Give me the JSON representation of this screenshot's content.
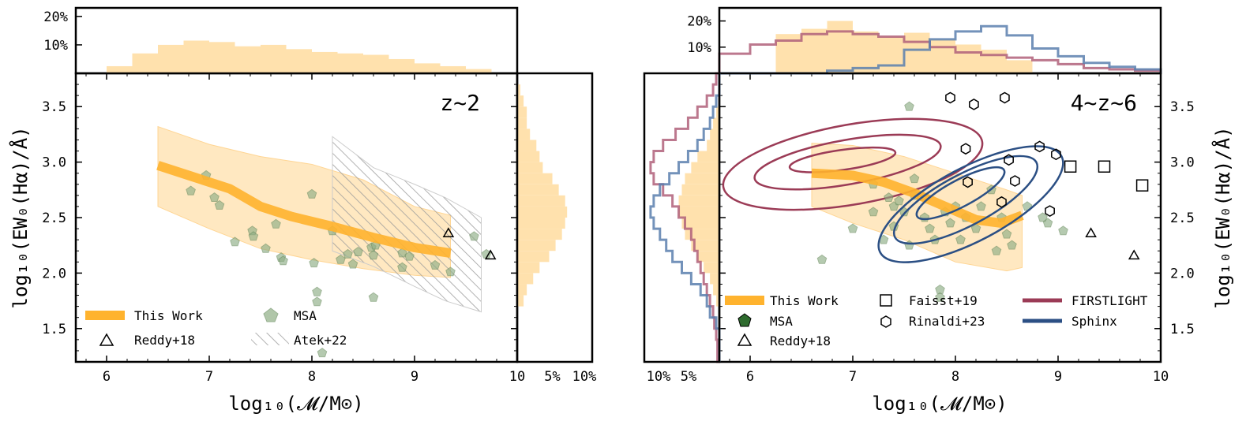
{
  "colors": {
    "this_work": "#ffb32e",
    "this_work_band": "#ffe1ad",
    "hist": "#ffe1ad",
    "msa": "#8fae86",
    "msa_stroke": "#6c8f62",
    "msa_legend": "#2e6b2e",
    "firstlight": "#9b3b56",
    "sphinx": "#2b4f84",
    "sphinx_hist": "#5b7fae",
    "firstlight_hist": "#b0607a",
    "atek_hatch": "#999999"
  },
  "icons": [
    "triangle-marker",
    "hexagon-marker",
    "square-marker",
    "pentagon-marker",
    "hatch-swatch"
  ],
  "chart_data": [
    {
      "type": "scatter",
      "panel": "left",
      "title": "z~2",
      "xlabel": "log10(M/M⊙)",
      "ylabel": "log10(EW0(Hα)/Å)",
      "xlim": [
        5.7,
        10.0
      ],
      "ylim": [
        1.2,
        3.8
      ],
      "x_ticks": [
        "6",
        "7",
        "8",
        "9",
        "10"
      ],
      "y_ticks": [
        "1.5",
        "2.0",
        "2.5",
        "3.0",
        "3.5"
      ],
      "legend": {
        "placement": "lower-left",
        "entries": [
          "This Work",
          "MSA",
          "Reddy+18",
          "Atek+22"
        ]
      },
      "this_work_median": {
        "x": [
          6.5,
          6.8,
          7.2,
          7.5,
          7.8,
          8.2,
          8.6,
          9.0,
          9.35
        ],
        "y": [
          2.97,
          2.88,
          2.76,
          2.6,
          2.51,
          2.42,
          2.32,
          2.23,
          2.18
        ]
      },
      "this_work_band": {
        "x": [
          6.5,
          7.0,
          7.5,
          8.0,
          8.5,
          9.0,
          9.35
        ],
        "y_low": [
          2.6,
          2.4,
          2.22,
          2.12,
          2.04,
          1.98,
          1.96
        ],
        "y_high": [
          3.32,
          3.16,
          3.05,
          2.98,
          2.84,
          2.6,
          2.52
        ]
      },
      "atek_region": {
        "x": [
          8.2,
          8.6,
          9.0,
          9.3,
          9.65,
          9.65,
          9.3,
          9.0,
          8.6,
          8.2
        ],
        "y": [
          3.23,
          2.95,
          2.8,
          2.68,
          2.5,
          1.65,
          1.75,
          1.88,
          2.06,
          2.2
        ]
      },
      "msa": {
        "x": [
          6.82,
          6.97,
          7.05,
          7.1,
          7.25,
          7.42,
          7.43,
          7.55,
          7.65,
          7.7,
          7.72,
          8.0,
          8.02,
          8.05,
          8.2,
          8.28,
          8.35,
          8.4,
          8.45,
          8.58,
          8.6,
          8.62,
          8.88,
          8.88,
          8.95,
          9.2,
          9.35,
          9.58,
          9.7,
          8.1,
          8.6,
          8.05
        ],
        "y": [
          2.74,
          2.88,
          2.68,
          2.61,
          2.28,
          2.38,
          2.33,
          2.22,
          2.44,
          2.14,
          2.11,
          2.71,
          2.09,
          1.83,
          2.38,
          2.12,
          2.17,
          2.08,
          2.19,
          2.23,
          2.16,
          2.25,
          2.18,
          2.05,
          2.15,
          2.07,
          2.01,
          2.33,
          2.17,
          1.28,
          1.78,
          1.74
        ]
      },
      "reddy18": {
        "x": [
          9.33,
          9.74
        ],
        "y": [
          2.36,
          2.16
        ]
      },
      "top_histogram": {
        "x_edges": [
          6.0,
          6.25,
          6.5,
          6.75,
          7.0,
          7.25,
          7.5,
          7.75,
          8.0,
          8.25,
          8.5,
          8.75,
          9.0,
          9.25,
          9.5,
          9.75
        ],
        "percent": [
          2.5,
          7.0,
          10.0,
          11.5,
          11.0,
          9.5,
          10.0,
          8.5,
          7.5,
          7.0,
          6.5,
          5.0,
          3.5,
          2.5,
          1.5
        ],
        "y_ticks": [
          "10%",
          "20%"
        ]
      },
      "right_histogram": {
        "y_edges": [
          1.4,
          1.5,
          1.6,
          1.7,
          1.8,
          1.9,
          2.0,
          2.1,
          2.2,
          2.3,
          2.4,
          2.5,
          2.6,
          2.7,
          2.8,
          2.9,
          3.0,
          3.1,
          3.2,
          3.3,
          3.4,
          3.5,
          3.6,
          3.7
        ],
        "percent": [
          0.0,
          0.0,
          0.0,
          1.0,
          1.5,
          2.5,
          3.5,
          5.0,
          6.0,
          7.0,
          7.5,
          7.8,
          7.5,
          6.5,
          5.5,
          4.0,
          3.5,
          3.0,
          2.0,
          1.5,
          1.5,
          1.0,
          0.5
        ],
        "x_ticks": [
          "10",
          "5%",
          "10%"
        ]
      }
    },
    {
      "type": "scatter",
      "panel": "right",
      "title": "4~z~6",
      "xlabel": "log10(M/M⊙)",
      "ylabel": "log10(EW0(Hα)/Å)",
      "xlim": [
        5.7,
        10.0
      ],
      "ylim": [
        1.2,
        3.8
      ],
      "x_ticks": [
        "6",
        "7",
        "8",
        "9",
        "10"
      ],
      "y_ticks": [
        "1.5",
        "2.0",
        "2.5",
        "3.0",
        "3.5"
      ],
      "legend": {
        "placement": "lower-left",
        "entries": [
          "This Work",
          "MSA",
          "Reddy+18",
          "Faisst+19",
          "Rinaldi+23",
          "FIRSTLIGHT",
          "Sphinx"
        ]
      },
      "this_work_median": {
        "x": [
          6.6,
          7.0,
          7.3,
          7.6,
          7.9,
          8.2,
          8.45,
          8.65
        ],
        "y": [
          2.9,
          2.88,
          2.82,
          2.72,
          2.6,
          2.48,
          2.45,
          2.52
        ]
      },
      "this_work_band": {
        "x": [
          6.6,
          7.0,
          7.5,
          8.0,
          8.5,
          8.65
        ],
        "y_low": [
          2.6,
          2.45,
          2.3,
          2.1,
          2.02,
          2.05
        ],
        "y_high": [
          3.17,
          3.15,
          3.05,
          2.9,
          2.75,
          2.7
        ]
      },
      "msa": {
        "x": [
          6.7,
          7.0,
          7.2,
          7.2,
          7.4,
          7.35,
          7.4,
          7.5,
          7.45,
          7.55,
          7.55,
          7.6,
          7.7,
          7.75,
          7.8,
          7.85,
          7.9,
          7.95,
          8.0,
          8.05,
          8.1,
          8.2,
          8.25,
          8.4,
          8.45,
          8.5,
          8.55,
          8.7,
          8.85,
          8.9,
          9.05,
          8.35,
          7.3,
          7.85,
          7.6
        ],
        "y": [
          2.12,
          2.4,
          2.55,
          2.8,
          2.6,
          2.68,
          2.42,
          2.55,
          2.65,
          2.25,
          3.5,
          2.7,
          2.5,
          2.4,
          2.3,
          1.85,
          2.55,
          2.45,
          2.6,
          2.3,
          2.5,
          2.4,
          2.6,
          2.2,
          2.5,
          2.35,
          2.25,
          2.6,
          2.5,
          2.45,
          2.38,
          2.75,
          2.3,
          1.78,
          2.85
        ]
      },
      "reddy18": {
        "x": [
          9.32,
          9.74
        ],
        "y": [
          2.36,
          2.16
        ]
      },
      "faisst19": {
        "x": [
          9.12,
          9.45,
          9.82
        ],
        "y": [
          2.96,
          2.96,
          2.79
        ]
      },
      "rinaldi23": {
        "x": [
          7.95,
          8.18,
          8.48,
          8.1,
          8.52,
          8.82,
          8.98,
          8.12,
          8.58,
          8.45,
          8.92
        ],
        "y": [
          3.58,
          3.52,
          3.58,
          3.12,
          3.02,
          3.14,
          3.07,
          2.82,
          2.83,
          2.64,
          2.56
        ]
      },
      "firstlight_contours": [
        {
          "cx": 7.0,
          "cy": 2.98,
          "rx": 1.28,
          "ry": 0.36,
          "angle_deg": -10
        },
        {
          "cx": 6.95,
          "cy": 3.0,
          "rx": 0.92,
          "ry": 0.2,
          "angle_deg": -10
        },
        {
          "cx": 6.9,
          "cy": 3.02,
          "rx": 0.52,
          "ry": 0.09,
          "angle_deg": -8
        }
      ],
      "sphinx_contours": [
        {
          "cx": 8.15,
          "cy": 2.62,
          "rx": 1.0,
          "ry": 0.33,
          "angle_deg": -28
        },
        {
          "cx": 8.1,
          "cy": 2.66,
          "rx": 0.78,
          "ry": 0.23,
          "angle_deg": -28
        },
        {
          "cx": 8.05,
          "cy": 2.72,
          "rx": 0.48,
          "ry": 0.12,
          "angle_deg": -28
        }
      ],
      "top_histograms": {
        "x_edges": [
          5.7,
          6.0,
          6.25,
          6.5,
          6.75,
          7.0,
          7.25,
          7.5,
          7.75,
          8.0,
          8.25,
          8.5,
          8.75,
          9.0,
          9.25,
          9.5,
          9.75,
          10.0
        ],
        "this_work_percent": [
          0.0,
          0.0,
          15.0,
          17.0,
          20.0,
          16.0,
          14.0,
          15.5,
          13.0,
          11.0,
          9.0,
          5.0,
          0.0,
          0.0,
          0.0,
          0.0,
          0.0
        ],
        "firstlight_percent": [
          7.5,
          11.0,
          12.5,
          15.0,
          16.0,
          15.0,
          14.0,
          12.0,
          10.0,
          8.0,
          7.0,
          6.0,
          5.0,
          3.5,
          2.0,
          1.5,
          1.0
        ],
        "sphinx_percent": [
          0.0,
          0.0,
          0.0,
          0.0,
          1.0,
          2.0,
          3.0,
          9.0,
          13.0,
          16.0,
          18.0,
          14.5,
          9.5,
          6.5,
          4.0,
          2.5,
          1.5
        ],
        "y_ticks": [
          "10%",
          "20%"
        ]
      },
      "left_histograms": {
        "y_edges": [
          1.2,
          1.3,
          1.4,
          1.5,
          1.6,
          1.7,
          1.8,
          1.9,
          2.0,
          2.1,
          2.2,
          2.3,
          2.4,
          2.5,
          2.6,
          2.7,
          2.8,
          2.9,
          3.0,
          3.1,
          3.2,
          3.3,
          3.4,
          3.5,
          3.6,
          3.7,
          3.8
        ],
        "this_work_percent": [
          0,
          0,
          0,
          0,
          0,
          0.5,
          1.0,
          1.5,
          2.5,
          3.5,
          4.5,
          5.5,
          6.0,
          6.5,
          6.5,
          6.0,
          5.5,
          4.5,
          3.5,
          2.0,
          1.5,
          1.0,
          0.5,
          0,
          0,
          0
        ],
        "firstlight_percent": [
          0.3,
          0.3,
          0.5,
          0.8,
          1.0,
          1.5,
          2.0,
          2.5,
          3.0,
          3.5,
          4.0,
          4.5,
          5.5,
          6.5,
          7.5,
          9.0,
          10.5,
          11.0,
          10.5,
          9.0,
          7.0,
          5.0,
          3.5,
          2.0,
          1.0,
          0.5
        ],
        "sphinx_percent": [
          0,
          0,
          0,
          0.5,
          1.5,
          2.0,
          3.0,
          4.5,
          6.0,
          7.5,
          8.5,
          9.5,
          10.5,
          11.0,
          10.5,
          9.5,
          8.0,
          6.5,
          5.0,
          3.5,
          2.5,
          1.5,
          1.0,
          0.5,
          0,
          0
        ],
        "x_ticks": [
          "10%",
          "5%"
        ]
      }
    }
  ],
  "labels": {
    "left_title": "z~2",
    "right_title": "4~z~6",
    "xlabel": "log₁₀(𝓜/M⊙)",
    "ylabel": "log₁₀(EW₀(Hα)/Å)",
    "legend_left": {
      "this_work": "This Work",
      "msa": "MSA",
      "reddy": "Reddy+18",
      "atek": "Atek+22"
    },
    "legend_right": {
      "this_work": "This Work",
      "msa": "MSA",
      "reddy": "Reddy+18",
      "faisst": "Faisst+19",
      "rinaldi": "Rinaldi+23",
      "firstlight": "FIRSTLIGHT",
      "sphinx": "Sphinx"
    }
  }
}
